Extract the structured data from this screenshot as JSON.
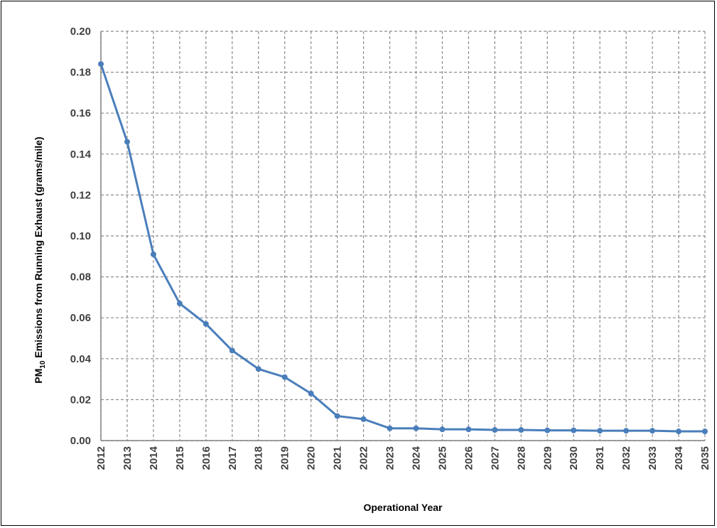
{
  "chart_data": {
    "type": "line",
    "title": "",
    "xlabel": "Operational Year",
    "ylabel_main": "PM",
    "ylabel_sub": "10",
    "ylabel_rest": " Emissions from Running Exhaust (grams/mile)",
    "ylim": [
      0,
      0.2
    ],
    "yticks": [
      "0.00",
      "0.02",
      "0.04",
      "0.06",
      "0.08",
      "0.10",
      "0.12",
      "0.14",
      "0.16",
      "0.18",
      "0.20"
    ],
    "categories": [
      "2012",
      "2013",
      "2014",
      "2015",
      "2016",
      "2017",
      "2018",
      "2019",
      "2020",
      "2021",
      "2022",
      "2023",
      "2024",
      "2025",
      "2026",
      "2027",
      "2028",
      "2029",
      "2030",
      "2031",
      "2032",
      "2033",
      "2034",
      "2035"
    ],
    "series": [
      {
        "values": [
          0.184,
          0.146,
          0.091,
          0.067,
          0.057,
          0.044,
          0.035,
          0.031,
          0.023,
          0.012,
          0.0105,
          0.006,
          0.006,
          0.0055,
          0.0055,
          0.0052,
          0.0052,
          0.005,
          0.005,
          0.0048,
          0.0048,
          0.0048,
          0.0045,
          0.0045
        ],
        "color": "#4a7ebb"
      }
    ],
    "grid": true,
    "grid_style": "dashed",
    "legend": "none"
  }
}
